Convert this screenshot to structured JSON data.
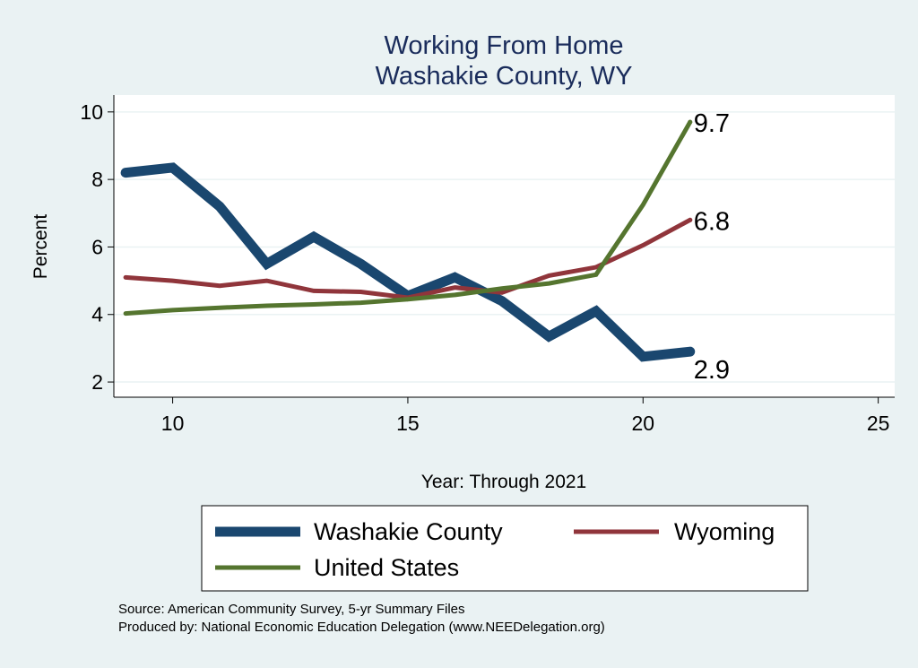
{
  "chart_data": {
    "type": "line",
    "title": "Working From Home",
    "subtitle": "Washakie County, WY",
    "xlabel": "Year: Through 2021",
    "ylabel": "Percent",
    "xlim": [
      8.75,
      25.35
    ],
    "ylim": [
      1.55,
      10.5
    ],
    "xticks": [
      10,
      15,
      20,
      25
    ],
    "yticks": [
      2,
      4,
      6,
      8,
      10
    ],
    "grid": true,
    "legend_position": "bottom",
    "x": [
      9,
      10,
      11,
      12,
      13,
      14,
      15,
      16,
      17,
      18,
      19,
      20,
      21
    ],
    "series": [
      {
        "name": "Washakie County",
        "color": "#1a476f",
        "width": "thick",
        "values": [
          8.2,
          8.35,
          7.2,
          5.5,
          6.3,
          5.5,
          4.55,
          5.1,
          4.4,
          3.35,
          4.1,
          2.75,
          2.9
        ],
        "end_label": "2.9"
      },
      {
        "name": "Wyoming",
        "color": "#90353b",
        "width": "medium",
        "values": [
          5.1,
          5.0,
          4.85,
          5.0,
          4.7,
          4.67,
          4.5,
          4.8,
          4.65,
          5.15,
          5.4,
          6.05,
          6.8
        ],
        "end_label": "6.8"
      },
      {
        "name": "United States",
        "color": "#55752f",
        "width": "medium",
        "values": [
          4.03,
          4.13,
          4.2,
          4.26,
          4.3,
          4.35,
          4.45,
          4.58,
          4.77,
          4.92,
          5.18,
          7.25,
          9.7
        ],
        "end_label": "9.7"
      }
    ],
    "notes": [
      "Source: American Community Survey, 5-yr Summary Files",
      "Produced by: National Economic Education Delegation (www.NEEDelegation.org)"
    ]
  }
}
